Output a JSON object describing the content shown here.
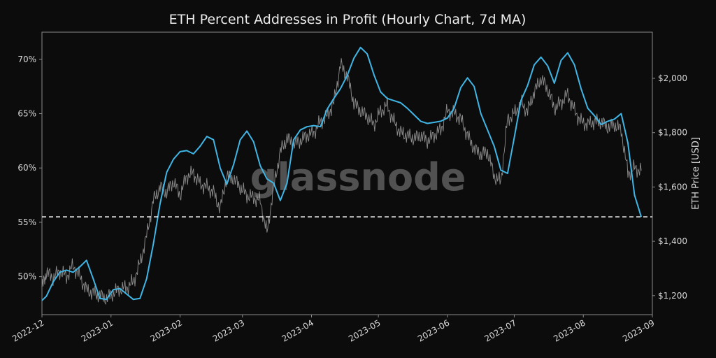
{
  "chart_data": {
    "type": "line",
    "title": "ETH Percent Addresses in Profit (Hourly Chart, 7d MA)",
    "watermark": "glassnode",
    "xlabel": "",
    "ylabel_left": "",
    "ylabel_right": "ETH Price [USD]",
    "x_tick_labels": [
      "2022-12",
      "2023-01",
      "2023-02",
      "2023-03",
      "2023-04",
      "2023-05",
      "2023-06",
      "2023-07",
      "2023-08",
      "2023-09"
    ],
    "y_left_ticks": [
      50,
      55,
      60,
      65,
      70
    ],
    "y_left_tick_labels": [
      "50%",
      "55%",
      "60%",
      "65%",
      "70%"
    ],
    "y_left_lim": [
      46.5,
      72.5
    ],
    "y_right_ticks": [
      1200,
      1400,
      1600,
      1800,
      2000
    ],
    "y_right_tick_labels": [
      "$1,200",
      "$1,400",
      "$1,600",
      "$1,800",
      "$2,000"
    ],
    "y_right_lim": [
      1130,
      2170
    ],
    "x_lim": [
      "2022-12-01",
      "2023-09-01"
    ],
    "reference_line": {
      "axis": "left",
      "value": 55.5,
      "style": "dashed",
      "color": "#ffffff"
    },
    "grid": false,
    "series": [
      {
        "axis": "left",
        "color": "#3fb6e6",
        "x": [
          "2022-12-01",
          "2022-12-03",
          "2022-12-06",
          "2022-12-09",
          "2022-12-12",
          "2022-12-15",
          "2022-12-18",
          "2022-12-21",
          "2022-12-24",
          "2022-12-27",
          "2022-12-30",
          "2023-01-02",
          "2023-01-05",
          "2023-01-08",
          "2023-01-11",
          "2023-01-14",
          "2023-01-17",
          "2023-01-20",
          "2023-01-23",
          "2023-01-26",
          "2023-01-29",
          "2023-02-01",
          "2023-02-04",
          "2023-02-07",
          "2023-02-10",
          "2023-02-13",
          "2023-02-16",
          "2023-02-19",
          "2023-02-22",
          "2023-02-25",
          "2023-02-28",
          "2023-03-03",
          "2023-03-06",
          "2023-03-09",
          "2023-03-12",
          "2023-03-15",
          "2023-03-18",
          "2023-03-21",
          "2023-03-24",
          "2023-03-27",
          "2023-03-30",
          "2023-04-02",
          "2023-04-05",
          "2023-04-08",
          "2023-04-11",
          "2023-04-14",
          "2023-04-17",
          "2023-04-20",
          "2023-04-23",
          "2023-04-26",
          "2023-04-29",
          "2023-05-02",
          "2023-05-05",
          "2023-05-08",
          "2023-05-11",
          "2023-05-14",
          "2023-05-17",
          "2023-05-20",
          "2023-05-23",
          "2023-05-26",
          "2023-05-29",
          "2023-06-01",
          "2023-06-04",
          "2023-06-07",
          "2023-06-10",
          "2023-06-13",
          "2023-06-16",
          "2023-06-19",
          "2023-06-22",
          "2023-06-25",
          "2023-06-28",
          "2023-07-01",
          "2023-07-04",
          "2023-07-07",
          "2023-07-10",
          "2023-07-13",
          "2023-07-16",
          "2023-07-19",
          "2023-07-22",
          "2023-07-25",
          "2023-07-28",
          "2023-07-31",
          "2023-08-03",
          "2023-08-06",
          "2023-08-09",
          "2023-08-12",
          "2023-08-15",
          "2023-08-18",
          "2023-08-21",
          "2023-08-24",
          "2023-08-27"
        ],
        "y": [
          47.8,
          48.2,
          49.5,
          50.4,
          50.6,
          50.4,
          50.9,
          51.5,
          49.8,
          48.0,
          47.9,
          48.8,
          48.9,
          48.4,
          47.9,
          48.0,
          49.8,
          53.0,
          56.7,
          59.6,
          60.8,
          61.5,
          61.6,
          61.3,
          62.0,
          62.9,
          62.6,
          60.0,
          58.5,
          60.3,
          62.6,
          63.4,
          62.4,
          60.2,
          59.0,
          58.6,
          57.0,
          58.6,
          62.6,
          63.5,
          63.8,
          63.9,
          63.8,
          65.4,
          66.4,
          67.3,
          68.5,
          70.1,
          71.1,
          70.5,
          68.6,
          67.0,
          66.4,
          66.2,
          66.0,
          65.5,
          64.9,
          64.3,
          64.1,
          64.2,
          64.3,
          64.6,
          65.5,
          67.4,
          68.3,
          67.5,
          65.0,
          63.5,
          62.0,
          59.8,
          59.5,
          62.8,
          66.2,
          67.6,
          69.5,
          70.2,
          69.4,
          67.8,
          69.9,
          70.6,
          69.5,
          67.3,
          65.5,
          64.8,
          64.0,
          64.3,
          64.5,
          65.0,
          62.3,
          57.5,
          55.5
        ]
      },
      {
        "axis": "right",
        "color": "#9a9a9a",
        "x": [
          "2022-12-01",
          "2022-12-03",
          "2022-12-06",
          "2022-12-09",
          "2022-12-12",
          "2022-12-15",
          "2022-12-18",
          "2022-12-21",
          "2022-12-24",
          "2022-12-27",
          "2022-12-30",
          "2023-01-02",
          "2023-01-05",
          "2023-01-08",
          "2023-01-11",
          "2023-01-14",
          "2023-01-17",
          "2023-01-20",
          "2023-01-23",
          "2023-01-26",
          "2023-01-29",
          "2023-02-01",
          "2023-02-04",
          "2023-02-07",
          "2023-02-10",
          "2023-02-13",
          "2023-02-16",
          "2023-02-19",
          "2023-02-22",
          "2023-02-25",
          "2023-02-28",
          "2023-03-03",
          "2023-03-06",
          "2023-03-09",
          "2023-03-12",
          "2023-03-15",
          "2023-03-18",
          "2023-03-21",
          "2023-03-24",
          "2023-03-27",
          "2023-03-30",
          "2023-04-02",
          "2023-04-05",
          "2023-04-08",
          "2023-04-11",
          "2023-04-14",
          "2023-04-17",
          "2023-04-20",
          "2023-04-23",
          "2023-04-26",
          "2023-04-29",
          "2023-05-02",
          "2023-05-05",
          "2023-05-08",
          "2023-05-11",
          "2023-05-14",
          "2023-05-17",
          "2023-05-20",
          "2023-05-23",
          "2023-05-26",
          "2023-05-29",
          "2023-06-01",
          "2023-06-04",
          "2023-06-07",
          "2023-06-10",
          "2023-06-13",
          "2023-06-16",
          "2023-06-19",
          "2023-06-22",
          "2023-06-25",
          "2023-06-28",
          "2023-07-01",
          "2023-07-04",
          "2023-07-07",
          "2023-07-10",
          "2023-07-13",
          "2023-07-16",
          "2023-07-19",
          "2023-07-22",
          "2023-07-25",
          "2023-07-28",
          "2023-07-31",
          "2023-08-03",
          "2023-08-06",
          "2023-08-09",
          "2023-08-12",
          "2023-08-15",
          "2023-08-18",
          "2023-08-21",
          "2023-08-24",
          "2023-08-27"
        ],
        "y": [
          1230,
          1285,
          1265,
          1290,
          1270,
          1310,
          1270,
          1220,
          1210,
          1200,
          1190,
          1210,
          1225,
          1230,
          1250,
          1320,
          1420,
          1550,
          1600,
          1580,
          1620,
          1570,
          1640,
          1650,
          1610,
          1600,
          1580,
          1520,
          1640,
          1630,
          1600,
          1570,
          1560,
          1550,
          1430,
          1600,
          1730,
          1780,
          1760,
          1770,
          1790,
          1800,
          1840,
          1860,
          1910,
          2050,
          2010,
          1910,
          1880,
          1860,
          1830,
          1880,
          1900,
          1840,
          1800,
          1790,
          1780,
          1790,
          1770,
          1790,
          1810,
          1880,
          1870,
          1850,
          1790,
          1740,
          1720,
          1730,
          1640,
          1620,
          1850,
          1870,
          1910,
          1880,
          1950,
          2000,
          1960,
          1890,
          1910,
          1940,
          1880,
          1840,
          1830,
          1840,
          1840,
          1820,
          1830,
          1810,
          1650,
          1670,
          1660
        ]
      }
    ]
  }
}
